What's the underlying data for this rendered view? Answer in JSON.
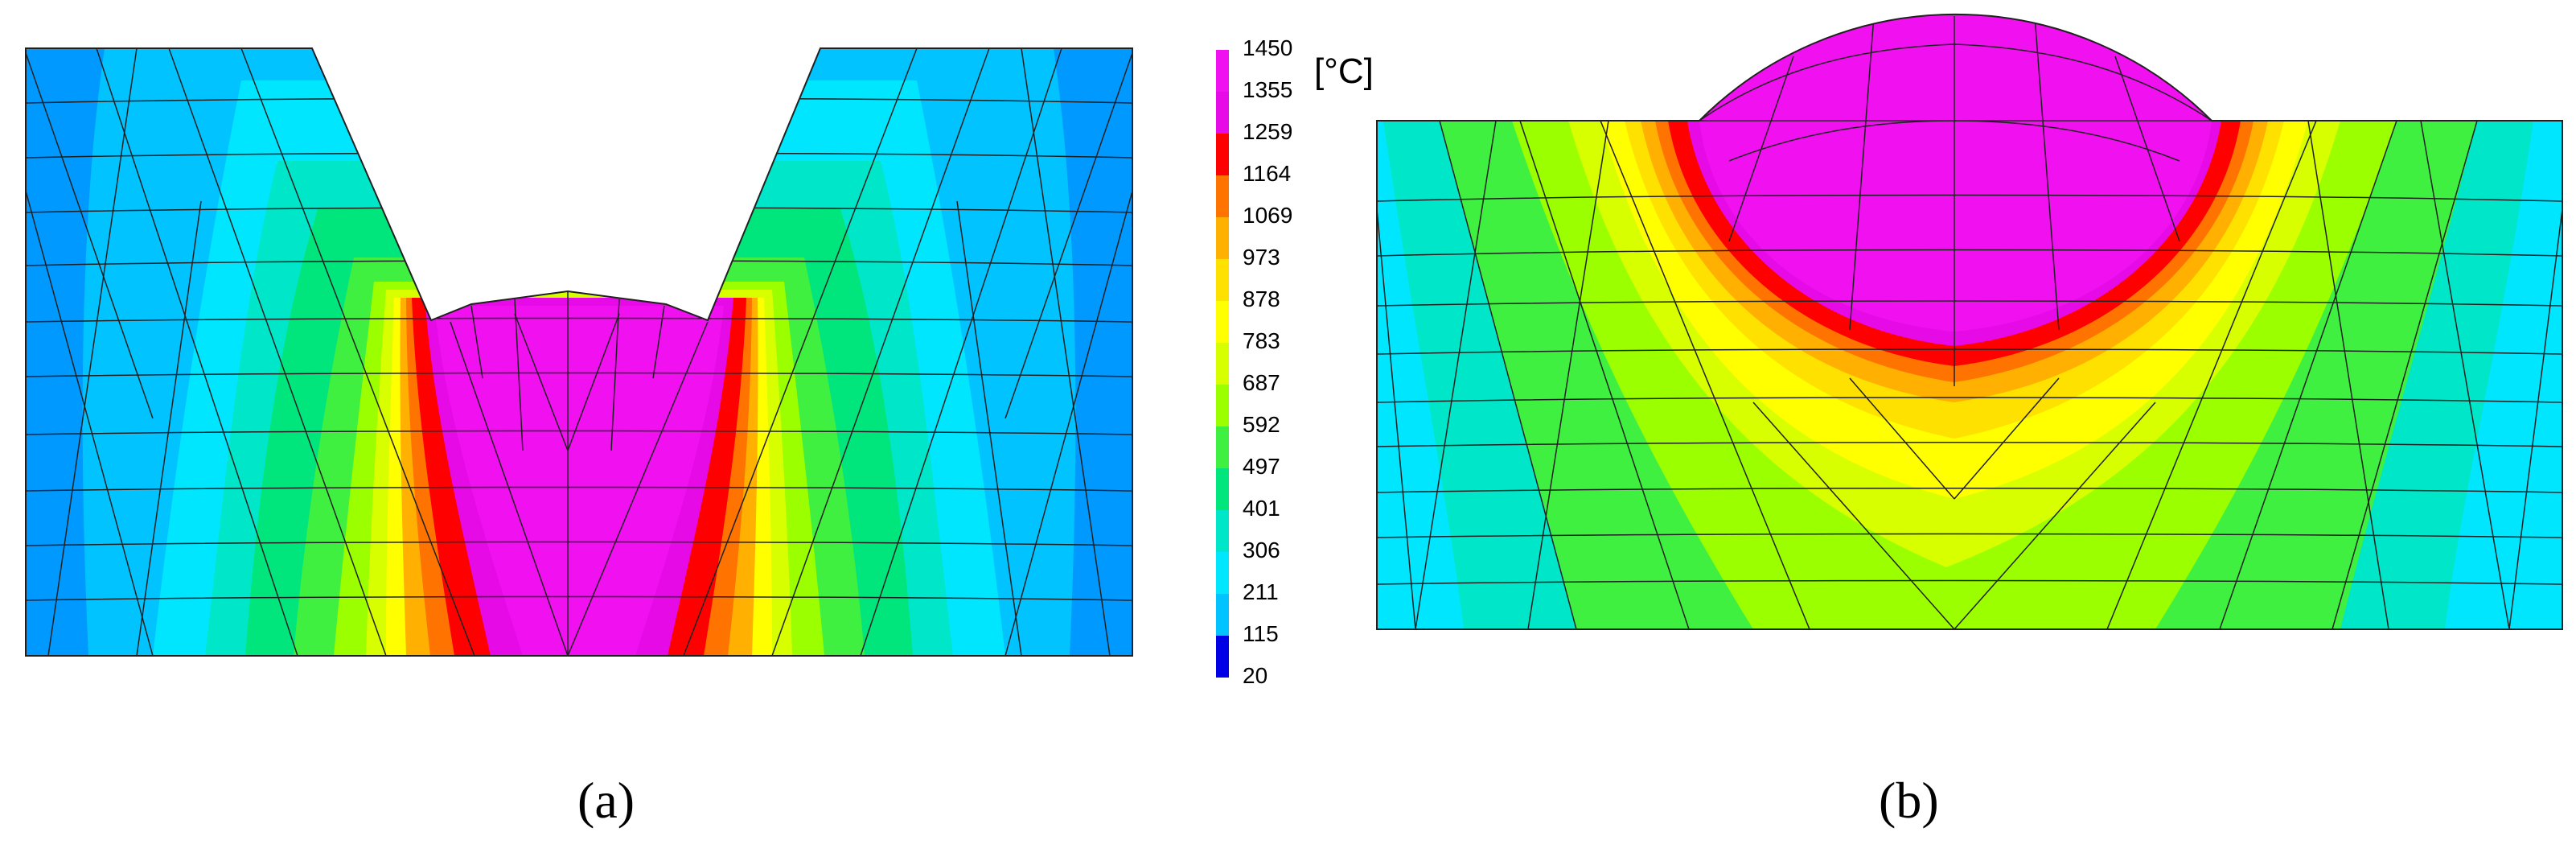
{
  "colorbar": {
    "unit": "[°C]",
    "ticks": [
      "1450",
      "1355",
      "1259",
      "1164",
      "1069",
      "973",
      "878",
      "783",
      "687",
      "592",
      "497",
      "401",
      "306",
      "211",
      "115",
      "20"
    ],
    "colors": [
      "#f010f0",
      "#e60ae6",
      "#ff0000",
      "#ff7300",
      "#ffb000",
      "#ffe100",
      "#ffff00",
      "#d8ff00",
      "#9bff00",
      "#40f040",
      "#00e67d",
      "#00e6c8",
      "#00e6ff",
      "#00c3ff",
      "#0099ff",
      "#0000e6"
    ]
  },
  "panels": [
    {
      "id": "a",
      "caption": "(a)",
      "shape": "V-groove weld cross-section"
    },
    {
      "id": "b",
      "caption": "(b)",
      "shape": "bead-on-plate weld cross-section"
    }
  ]
}
